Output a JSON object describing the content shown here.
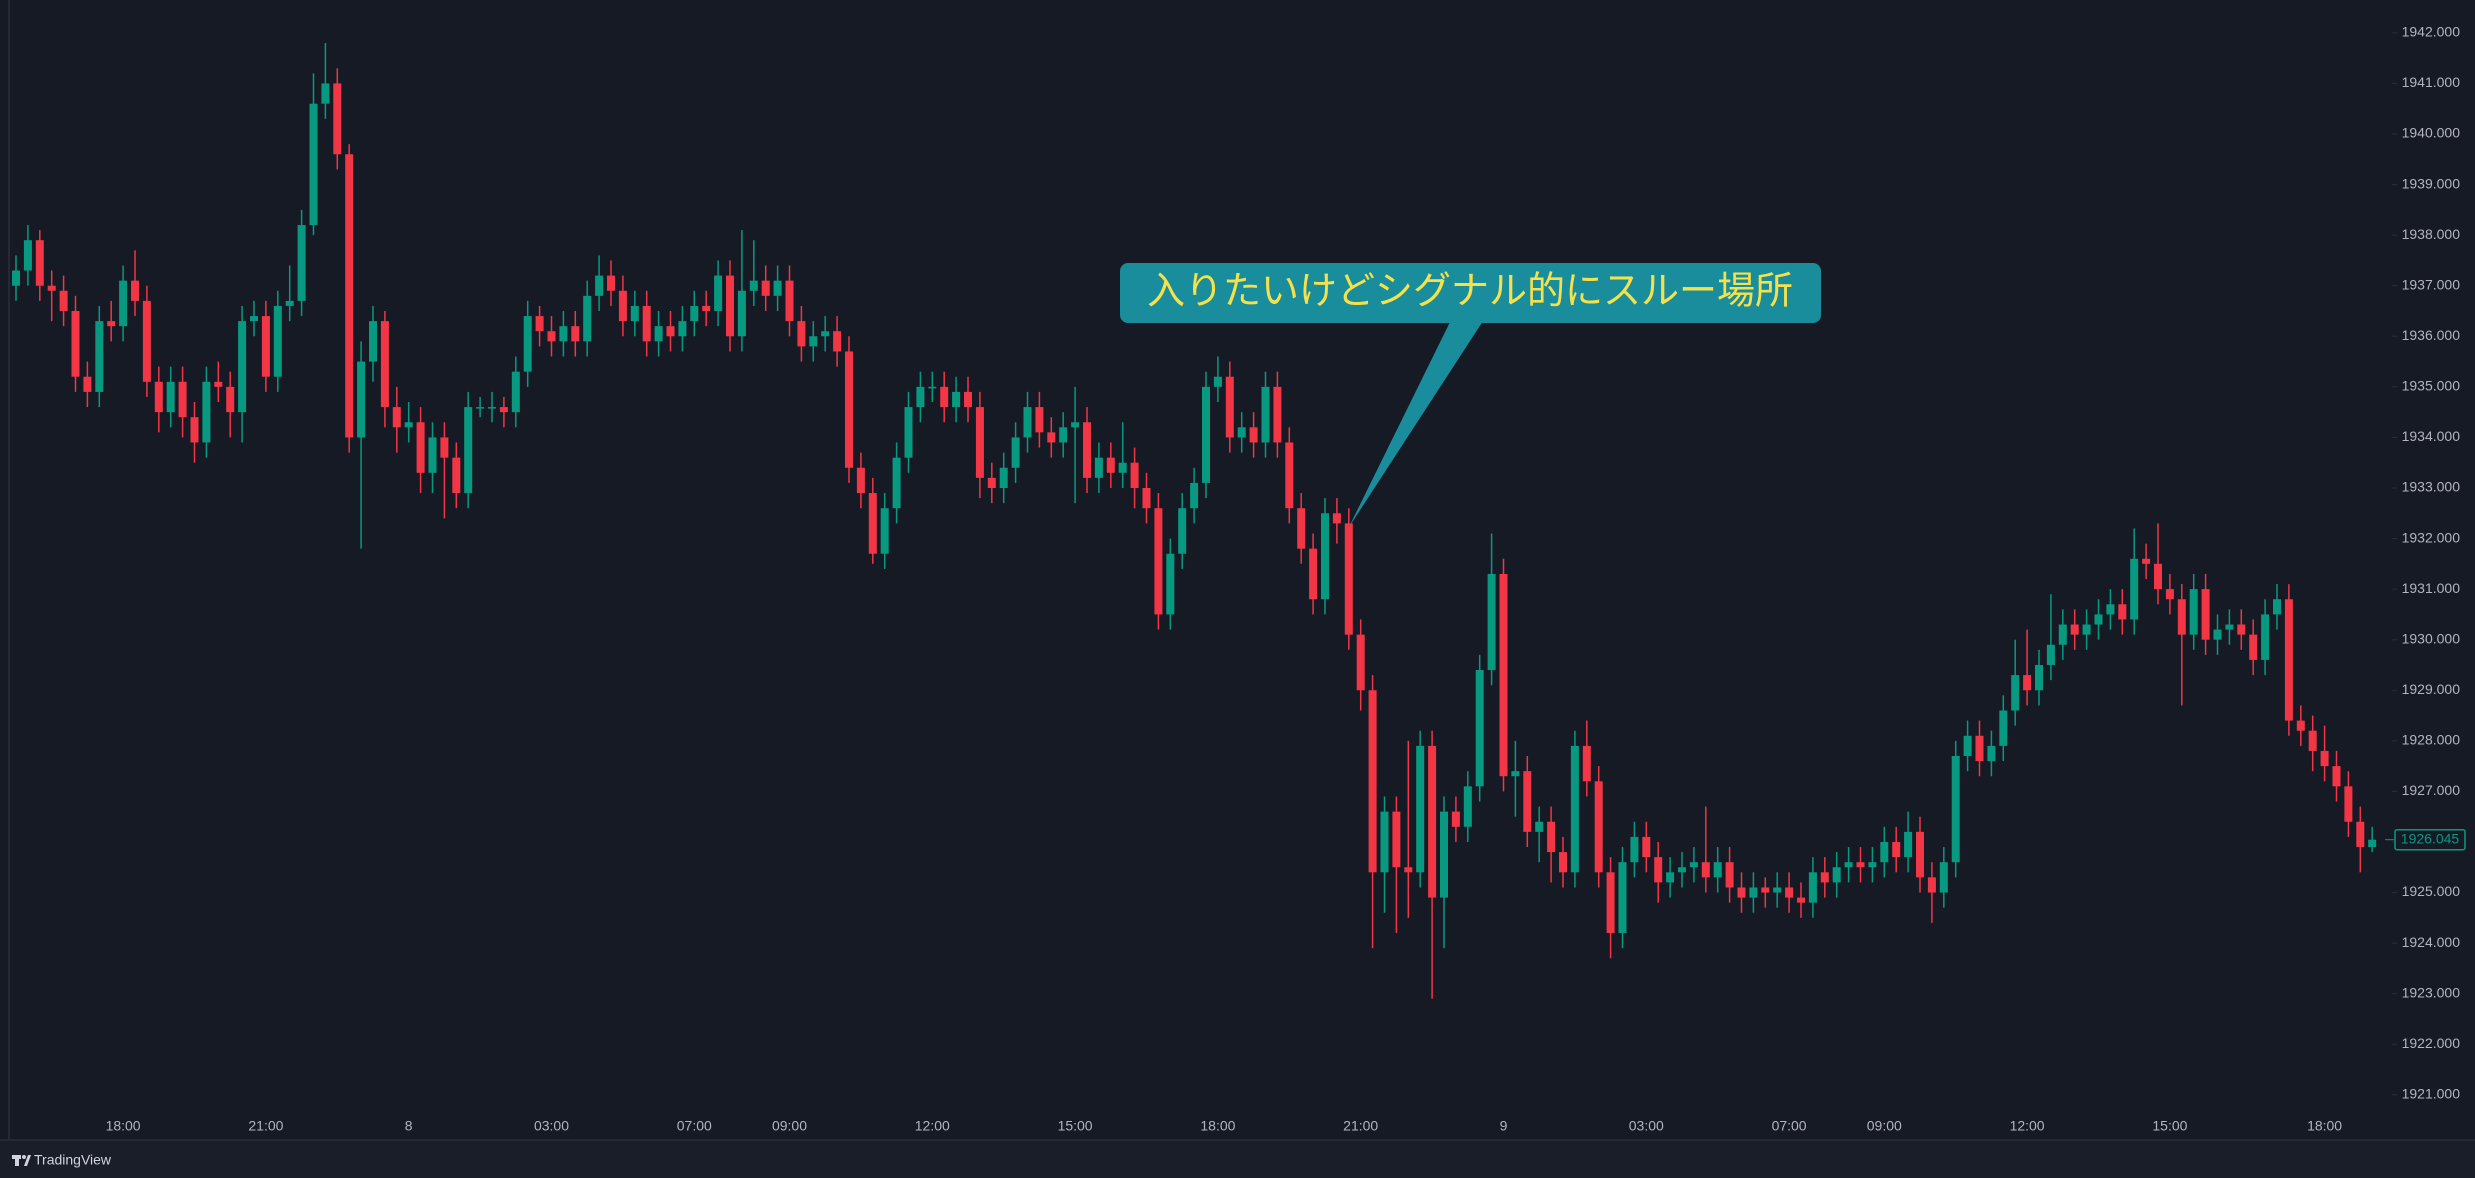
{
  "chart_data": {
    "type": "candlestick",
    "up_color": "#089981",
    "down_color": "#f23645",
    "ylim": [
      1920.66,
      1942.65
    ],
    "yticks": [
      {
        "value": 1921,
        "label": "1921.000"
      },
      {
        "value": 1922,
        "label": "1922.000"
      },
      {
        "value": 1923,
        "label": "1923.000"
      },
      {
        "value": 1924,
        "label": "1924.000"
      },
      {
        "value": 1925,
        "label": "1925.000"
      },
      {
        "value": 1926,
        "label": "1926.000"
      },
      {
        "value": 1927,
        "label": "1927.000"
      },
      {
        "value": 1928,
        "label": "1928.000"
      },
      {
        "value": 1929,
        "label": "1929.000"
      },
      {
        "value": 1930,
        "label": "1930.000"
      },
      {
        "value": 1931,
        "label": "1931.000"
      },
      {
        "value": 1932,
        "label": "1932.000"
      },
      {
        "value": 1933,
        "label": "1933.000"
      },
      {
        "value": 1934,
        "label": "1934.000"
      },
      {
        "value": 1935,
        "label": "1935.000"
      },
      {
        "value": 1936,
        "label": "1936.000"
      },
      {
        "value": 1937,
        "label": "1937.000"
      },
      {
        "value": 1938,
        "label": "1938.000"
      },
      {
        "value": 1939,
        "label": "1939.000"
      },
      {
        "value": 1940,
        "label": "1940.000"
      },
      {
        "value": 1941,
        "label": "1941.000"
      },
      {
        "value": 1942,
        "label": "1942.000"
      }
    ],
    "last_price": 1926.045,
    "annotation": "入りたいけどシグナル的にスルー場所",
    "categories": [
      null,
      null,
      null,
      null,
      null,
      null,
      null,
      null,
      null,
      "18:00",
      null,
      null,
      null,
      null,
      null,
      null,
      null,
      null,
      null,
      null,
      null,
      "21:00",
      null,
      null,
      null,
      null,
      null,
      null,
      null,
      null,
      null,
      null,
      null,
      "8",
      null,
      null,
      null,
      null,
      null,
      null,
      null,
      null,
      null,
      null,
      null,
      "03:00",
      null,
      null,
      null,
      null,
      null,
      null,
      null,
      null,
      null,
      null,
      null,
      "07:00",
      null,
      null,
      null,
      null,
      null,
      null,
      null,
      "09:00",
      null,
      null,
      null,
      null,
      null,
      null,
      null,
      null,
      null,
      null,
      null,
      "12:00",
      null,
      null,
      null,
      null,
      null,
      null,
      null,
      null,
      null,
      null,
      null,
      "15:00",
      null,
      null,
      null,
      null,
      null,
      null,
      null,
      null,
      null,
      null,
      null,
      "18:00",
      null,
      null,
      null,
      null,
      null,
      null,
      null,
      null,
      null,
      null,
      null,
      "21:00",
      null,
      null,
      null,
      null,
      null,
      null,
      null,
      null,
      null,
      null,
      null,
      "9",
      null,
      null,
      null,
      null,
      null,
      null,
      null,
      null,
      null,
      null,
      null,
      "03:00",
      null,
      null,
      null,
      null,
      null,
      null,
      null,
      null,
      null,
      null,
      null,
      "07:00",
      null,
      null,
      null,
      null,
      null,
      null,
      null,
      "09:00",
      null,
      null,
      null,
      null,
      null,
      null,
      null,
      null,
      null,
      null,
      null,
      "12:00",
      null,
      null,
      null,
      null,
      null,
      null,
      null,
      null,
      null,
      null,
      null,
      "15:00",
      null,
      null,
      null,
      null,
      null,
      null,
      null,
      null,
      null,
      null,
      null,
      null,
      "18:00",
      null,
      null,
      null,
      null
    ],
    "open": [
      1937.0,
      1937.3,
      1937.9,
      1937.0,
      1936.9,
      1936.5,
      1935.2,
      1934.9,
      1936.3,
      1936.2,
      1937.1,
      1936.7,
      1935.1,
      1934.5,
      1935.1,
      1934.4,
      1933.9,
      1935.1,
      1935.0,
      1934.5,
      1936.3,
      1936.4,
      1935.2,
      1936.6,
      1936.7,
      1938.2,
      1940.6,
      1941.0,
      1939.6,
      1934.0,
      1935.5,
      1936.3,
      1934.6,
      1934.2,
      1934.3,
      1933.3,
      1934.0,
      1933.6,
      1932.9,
      1934.6,
      1934.6,
      1934.6,
      1934.5,
      1935.3,
      1936.4,
      1936.1,
      1935.9,
      1936.2,
      1935.9,
      1936.8,
      1937.2,
      1936.9,
      1936.3,
      1936.6,
      1935.9,
      1936.2,
      1936.0,
      1936.3,
      1936.6,
      1936.5,
      1937.2,
      1936.0,
      1936.9,
      1937.1,
      1936.8,
      1937.1,
      1936.3,
      1935.8,
      1936.0,
      1936.1,
      1935.7,
      1933.4,
      1932.9,
      1931.7,
      1932.6,
      1933.6,
      1934.6,
      1935.0,
      1935.0,
      1934.6,
      1934.9,
      1934.6,
      1933.2,
      1933.0,
      1933.4,
      1934.0,
      1934.6,
      1934.1,
      1933.9,
      1934.2,
      1934.3,
      1933.2,
      1933.6,
      1933.3,
      1933.5,
      1933.0,
      1932.6,
      1930.5,
      1931.7,
      1932.6,
      1933.1,
      1935.0,
      1935.2,
      1934.0,
      1934.2,
      1933.9,
      1935.0,
      1933.9,
      1932.6,
      1931.8,
      1930.8,
      1932.5,
      1932.3,
      1930.1,
      1929.0,
      1925.4,
      1926.6,
      1925.5,
      1925.4,
      1927.9,
      1924.9,
      1926.6,
      1926.3,
      1927.1,
      1929.4,
      1931.3,
      1927.3,
      1927.4,
      1926.2,
      1926.4,
      1925.8,
      1925.4,
      1927.9,
      1927.2,
      1925.4,
      1924.2,
      1925.6,
      1926.1,
      1925.7,
      1925.2,
      1925.4,
      1925.5,
      1925.6,
      1925.3,
      1925.6,
      1925.1,
      1924.9,
      1925.1,
      1925.0,
      1925.1,
      1924.9,
      1924.8,
      1925.4,
      1925.2,
      1925.5,
      1925.6,
      1925.5,
      1925.6,
      1926.0,
      1925.7,
      1926.2,
      1925.3,
      1925.0,
      1925.6,
      1927.7,
      1928.1,
      1927.6,
      1927.9,
      1928.6,
      1929.3,
      1929.0,
      1929.5,
      1929.9,
      1930.3,
      1930.1,
      1930.3,
      1930.5,
      1930.7,
      1930.4,
      1931.6,
      1931.5,
      1931.0,
      1930.8,
      1930.1,
      1931.0,
      1930.0,
      1930.2,
      1930.3,
      1930.1,
      1929.6,
      1930.5,
      1930.8,
      1928.4,
      1928.2,
      1927.8,
      1927.5,
      1927.1,
      1926.4,
      1925.9
    ],
    "high": [
      1937.6,
      1938.2,
      1938.1,
      1937.3,
      1937.2,
      1936.8,
      1935.5,
      1936.6,
      1936.7,
      1937.4,
      1937.7,
      1937.0,
      1935.4,
      1935.4,
      1935.4,
      1934.7,
      1935.4,
      1935.5,
      1935.3,
      1936.6,
      1936.7,
      1936.7,
      1936.9,
      1937.4,
      1938.5,
      1941.2,
      1941.8,
      1941.3,
      1939.8,
      1935.9,
      1936.6,
      1936.5,
      1935.0,
      1934.7,
      1934.6,
      1934.3,
      1934.3,
      1933.9,
      1934.9,
      1934.8,
      1934.9,
      1934.8,
      1935.6,
      1936.7,
      1936.6,
      1936.4,
      1936.5,
      1936.5,
      1937.1,
      1937.6,
      1937.5,
      1937.2,
      1936.9,
      1936.9,
      1936.5,
      1936.5,
      1936.6,
      1936.9,
      1936.9,
      1937.5,
      1937.5,
      1938.1,
      1937.9,
      1937.4,
      1937.4,
      1937.4,
      1936.6,
      1936.3,
      1936.4,
      1936.4,
      1936.0,
      1933.7,
      1933.2,
      1932.9,
      1933.9,
      1934.9,
      1935.3,
      1935.3,
      1935.3,
      1935.2,
      1935.2,
      1934.9,
      1933.5,
      1933.7,
      1934.3,
      1934.9,
      1934.9,
      1934.4,
      1934.5,
      1935.0,
      1934.6,
      1933.9,
      1933.9,
      1934.3,
      1933.8,
      1933.3,
      1932.9,
      1932.0,
      1932.9,
      1933.4,
      1935.3,
      1935.6,
      1935.5,
      1934.5,
      1934.5,
      1935.3,
      1935.3,
      1934.2,
      1932.9,
      1932.1,
      1932.8,
      1932.8,
      1932.6,
      1930.4,
      1929.3,
      1926.9,
      1926.9,
      1928.0,
      1928.2,
      1928.2,
      1926.9,
      1926.9,
      1927.4,
      1929.7,
      1932.1,
      1931.6,
      1928.0,
      1927.7,
      1926.7,
      1926.7,
      1926.1,
      1928.2,
      1928.4,
      1927.5,
      1925.7,
      1925.9,
      1926.4,
      1926.4,
      1926.0,
      1925.7,
      1925.8,
      1925.9,
      1926.7,
      1925.9,
      1925.9,
      1925.4,
      1925.4,
      1925.3,
      1925.4,
      1925.4,
      1925.2,
      1925.7,
      1925.7,
      1925.8,
      1925.9,
      1925.9,
      1925.9,
      1926.3,
      1926.3,
      1926.6,
      1926.5,
      1925.6,
      1925.9,
      1928.0,
      1928.4,
      1928.4,
      1928.2,
      1928.9,
      1930.0,
      1930.2,
      1929.8,
      1930.9,
      1930.6,
      1930.6,
      1930.6,
      1930.8,
      1931.0,
      1931.0,
      1932.2,
      1931.9,
      1932.3,
      1931.3,
      1931.1,
      1931.3,
      1931.3,
      1930.5,
      1930.6,
      1930.6,
      1930.4,
      1930.8,
      1931.1,
      1931.1,
      1928.7,
      1928.5,
      1928.3,
      1927.8,
      1927.4,
      1926.7,
      1926.3
    ],
    "low": [
      1936.7,
      1937.0,
      1936.7,
      1936.3,
      1936.2,
      1934.9,
      1934.6,
      1934.6,
      1935.9,
      1935.9,
      1936.4,
      1934.8,
      1934.1,
      1934.2,
      1934.0,
      1933.5,
      1933.6,
      1934.7,
      1934.0,
      1933.9,
      1936.0,
      1934.9,
      1934.9,
      1936.3,
      1936.4,
      1938.0,
      1940.3,
      1939.3,
      1933.7,
      1931.8,
      1935.1,
      1934.2,
      1933.7,
      1933.9,
      1932.9,
      1932.9,
      1932.4,
      1932.6,
      1932.6,
      1934.4,
      1934.3,
      1934.2,
      1934.2,
      1935.0,
      1935.8,
      1935.6,
      1935.6,
      1935.6,
      1935.6,
      1936.5,
      1936.6,
      1936.0,
      1936.0,
      1935.6,
      1935.6,
      1935.7,
      1935.7,
      1936.0,
      1936.2,
      1936.2,
      1935.7,
      1935.7,
      1936.6,
      1936.5,
      1936.5,
      1936.0,
      1935.5,
      1935.5,
      1935.7,
      1935.4,
      1933.1,
      1932.6,
      1931.5,
      1931.4,
      1932.3,
      1933.3,
      1934.3,
      1934.7,
      1934.3,
      1934.3,
      1934.3,
      1932.8,
      1932.7,
      1932.7,
      1933.1,
      1933.7,
      1933.8,
      1933.6,
      1933.6,
      1932.7,
      1932.9,
      1932.9,
      1933.0,
      1933.0,
      1932.6,
      1932.3,
      1930.2,
      1930.2,
      1931.4,
      1932.3,
      1932.8,
      1934.7,
      1933.7,
      1933.7,
      1933.6,
      1933.6,
      1933.6,
      1932.3,
      1931.5,
      1930.5,
      1930.5,
      1931.9,
      1929.8,
      1928.6,
      1923.9,
      1924.6,
      1924.2,
      1924.5,
      1925.1,
      1922.9,
      1923.9,
      1926.0,
      1926.0,
      1926.8,
      1929.1,
      1927.0,
      1926.5,
      1925.9,
      1925.6,
      1925.2,
      1925.1,
      1925.1,
      1926.9,
      1925.1,
      1923.7,
      1923.9,
      1925.3,
      1925.4,
      1924.8,
      1924.9,
      1925.1,
      1925.2,
      1925.0,
      1925.0,
      1924.8,
      1924.6,
      1924.6,
      1924.7,
      1924.7,
      1924.6,
      1924.5,
      1924.5,
      1924.9,
      1924.9,
      1925.2,
      1925.2,
      1925.2,
      1925.3,
      1925.4,
      1925.4,
      1925.0,
      1924.4,
      1924.7,
      1925.3,
      1927.4,
      1927.3,
      1927.3,
      1927.6,
      1928.3,
      1928.7,
      1928.7,
      1929.2,
      1929.6,
      1929.8,
      1929.8,
      1930.0,
      1930.2,
      1930.1,
      1930.1,
      1931.2,
      1930.7,
      1930.5,
      1928.7,
      1929.8,
      1929.7,
      1929.7,
      1929.9,
      1929.8,
      1929.3,
      1929.3,
      1930.2,
      1928.1,
      1927.9,
      1927.4,
      1927.2,
      1926.8,
      1926.1,
      1925.4,
      1925.8
    ],
    "close": [
      1937.3,
      1937.9,
      1937.0,
      1936.9,
      1936.5,
      1935.2,
      1934.9,
      1936.3,
      1936.2,
      1937.1,
      1936.7,
      1935.1,
      1934.5,
      1935.1,
      1934.4,
      1933.9,
      1935.1,
      1935.0,
      1934.5,
      1936.3,
      1936.4,
      1935.2,
      1936.6,
      1936.7,
      1938.2,
      1940.6,
      1941.0,
      1939.6,
      1934.0,
      1935.5,
      1936.3,
      1934.6,
      1934.2,
      1934.3,
      1933.3,
      1934.0,
      1933.6,
      1932.9,
      1934.6,
      1934.6,
      1934.6,
      1934.5,
      1935.3,
      1936.4,
      1936.1,
      1935.9,
      1936.2,
      1935.9,
      1936.8,
      1937.2,
      1936.9,
      1936.3,
      1936.6,
      1935.9,
      1936.2,
      1936.0,
      1936.3,
      1936.6,
      1936.5,
      1937.2,
      1936.0,
      1936.9,
      1937.1,
      1936.8,
      1937.1,
      1936.3,
      1935.8,
      1936.0,
      1936.1,
      1935.7,
      1933.4,
      1932.9,
      1931.7,
      1932.6,
      1933.6,
      1934.6,
      1935.0,
      1935.0,
      1934.6,
      1934.9,
      1934.6,
      1933.2,
      1933.0,
      1933.4,
      1934.0,
      1934.6,
      1934.1,
      1933.9,
      1934.2,
      1934.3,
      1933.2,
      1933.6,
      1933.3,
      1933.5,
      1933.0,
      1932.6,
      1930.5,
      1931.7,
      1932.6,
      1933.1,
      1935.0,
      1935.2,
      1934.0,
      1934.2,
      1933.9,
      1935.0,
      1933.9,
      1932.6,
      1931.8,
      1930.8,
      1932.5,
      1932.3,
      1930.1,
      1929.0,
      1925.4,
      1926.6,
      1925.5,
      1925.4,
      1927.9,
      1924.9,
      1926.6,
      1926.3,
      1927.1,
      1929.4,
      1931.3,
      1927.3,
      1927.4,
      1926.2,
      1926.4,
      1925.8,
      1925.4,
      1927.9,
      1927.2,
      1925.4,
      1924.2,
      1925.6,
      1926.1,
      1925.7,
      1925.2,
      1925.4,
      1925.5,
      1925.6,
      1925.3,
      1925.6,
      1925.1,
      1924.9,
      1925.1,
      1925.0,
      1925.1,
      1924.9,
      1924.8,
      1925.4,
      1925.2,
      1925.5,
      1925.6,
      1925.5,
      1925.6,
      1926.0,
      1925.7,
      1926.2,
      1925.3,
      1925.0,
      1925.6,
      1927.7,
      1928.1,
      1927.6,
      1927.9,
      1928.6,
      1929.3,
      1929.0,
      1929.5,
      1929.9,
      1930.3,
      1930.1,
      1930.3,
      1930.5,
      1930.7,
      1930.4,
      1931.6,
      1931.5,
      1931.0,
      1930.8,
      1930.1,
      1931.0,
      1930.0,
      1930.2,
      1930.3,
      1930.1,
      1929.6,
      1930.5,
      1930.8,
      1928.4,
      1928.2,
      1927.8,
      1927.5,
      1927.1,
      1926.4,
      1925.9,
      1926.045
    ]
  },
  "footer": {
    "brand": "TradingView"
  }
}
